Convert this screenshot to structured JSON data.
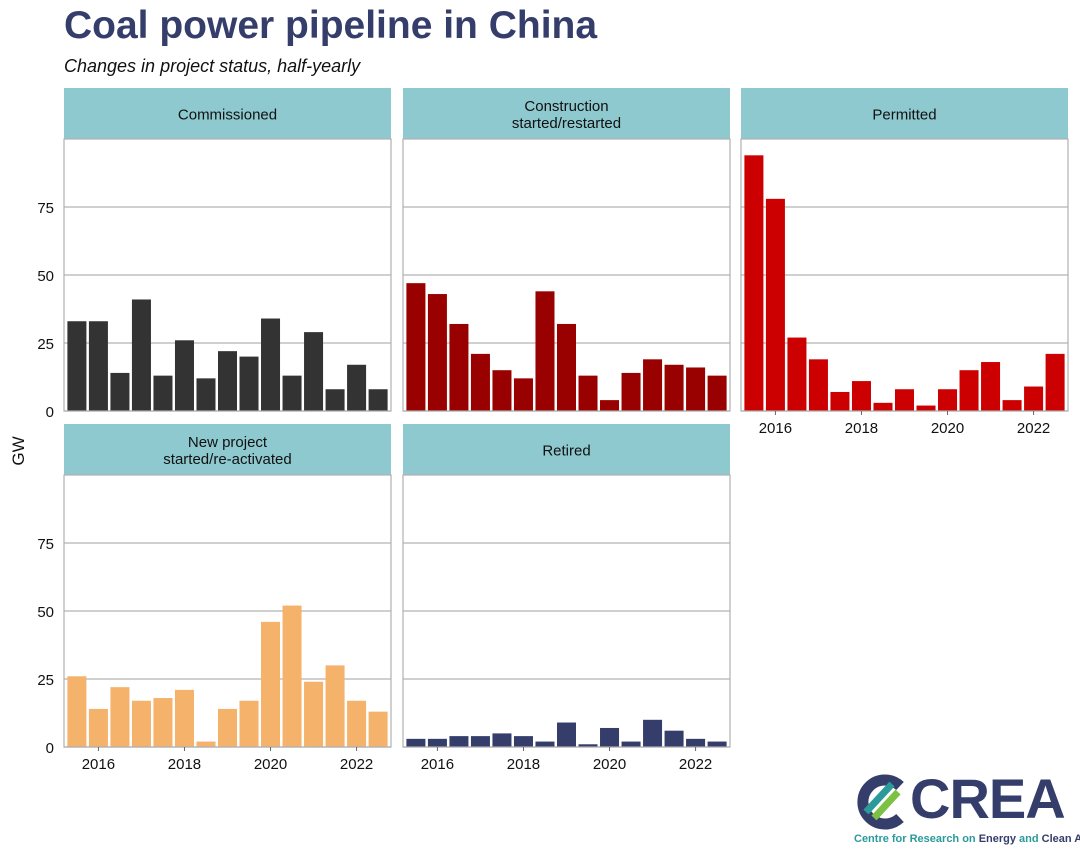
{
  "header": {
    "title": "Coal power pipeline in China",
    "subtitle": "Changes in project status, half-yearly"
  },
  "logo": {
    "name": "CREA",
    "tagline_part1": "Centre for Research on ",
    "tagline_part2": "Energy",
    "tagline_part3": " and ",
    "tagline_part4": "Clean Air"
  },
  "chart_data": {
    "type": "bar",
    "title": "Coal power pipeline in China",
    "subtitle": "Changes in project status, half-yearly",
    "ylabel": "GW",
    "xlabel": "",
    "ylim": [
      0,
      100
    ],
    "yticks": [
      0,
      25,
      50,
      75
    ],
    "xticks": [
      2016,
      2018,
      2020,
      2022
    ],
    "xlim": [
      2015.2,
      2022.8
    ],
    "x": [
      2015.5,
      2016.0,
      2016.5,
      2017.0,
      2017.5,
      2018.0,
      2018.5,
      2019.0,
      2019.5,
      2020.0,
      2020.5,
      2021.0,
      2021.5,
      2022.0,
      2022.5
    ],
    "panels": [
      {
        "name": "Commissioned",
        "label_lines": [
          "Commissioned"
        ],
        "color": "#333333",
        "values": [
          33,
          33,
          14,
          41,
          13,
          26,
          12,
          22,
          20,
          34,
          13,
          29,
          8,
          17,
          8
        ]
      },
      {
        "name": "Construction started/restarted",
        "label_lines": [
          "Construction",
          "started/restarted"
        ],
        "color": "#990000",
        "values": [
          47,
          43,
          32,
          21,
          15,
          12,
          44,
          32,
          13,
          4,
          14,
          19,
          17,
          16,
          13
        ]
      },
      {
        "name": "Permitted",
        "label_lines": [
          "Permitted"
        ],
        "color": "#cc0000",
        "values": [
          94,
          78,
          27,
          19,
          7,
          11,
          3,
          8,
          2,
          8,
          15,
          18,
          4,
          9,
          21
        ]
      },
      {
        "name": "New project started/re-activated",
        "label_lines": [
          "New project",
          "started/re-activated"
        ],
        "color": "#f5b26b",
        "values": [
          26,
          14,
          22,
          17,
          18,
          21,
          2,
          14,
          17,
          46,
          52,
          24,
          30,
          17,
          13
        ]
      },
      {
        "name": "Retired",
        "label_lines": [
          "Retired"
        ],
        "color": "#353d6b",
        "values": [
          3,
          3,
          4,
          4,
          5,
          4,
          2,
          9,
          1,
          7,
          2,
          10,
          6,
          3,
          2
        ]
      }
    ]
  }
}
